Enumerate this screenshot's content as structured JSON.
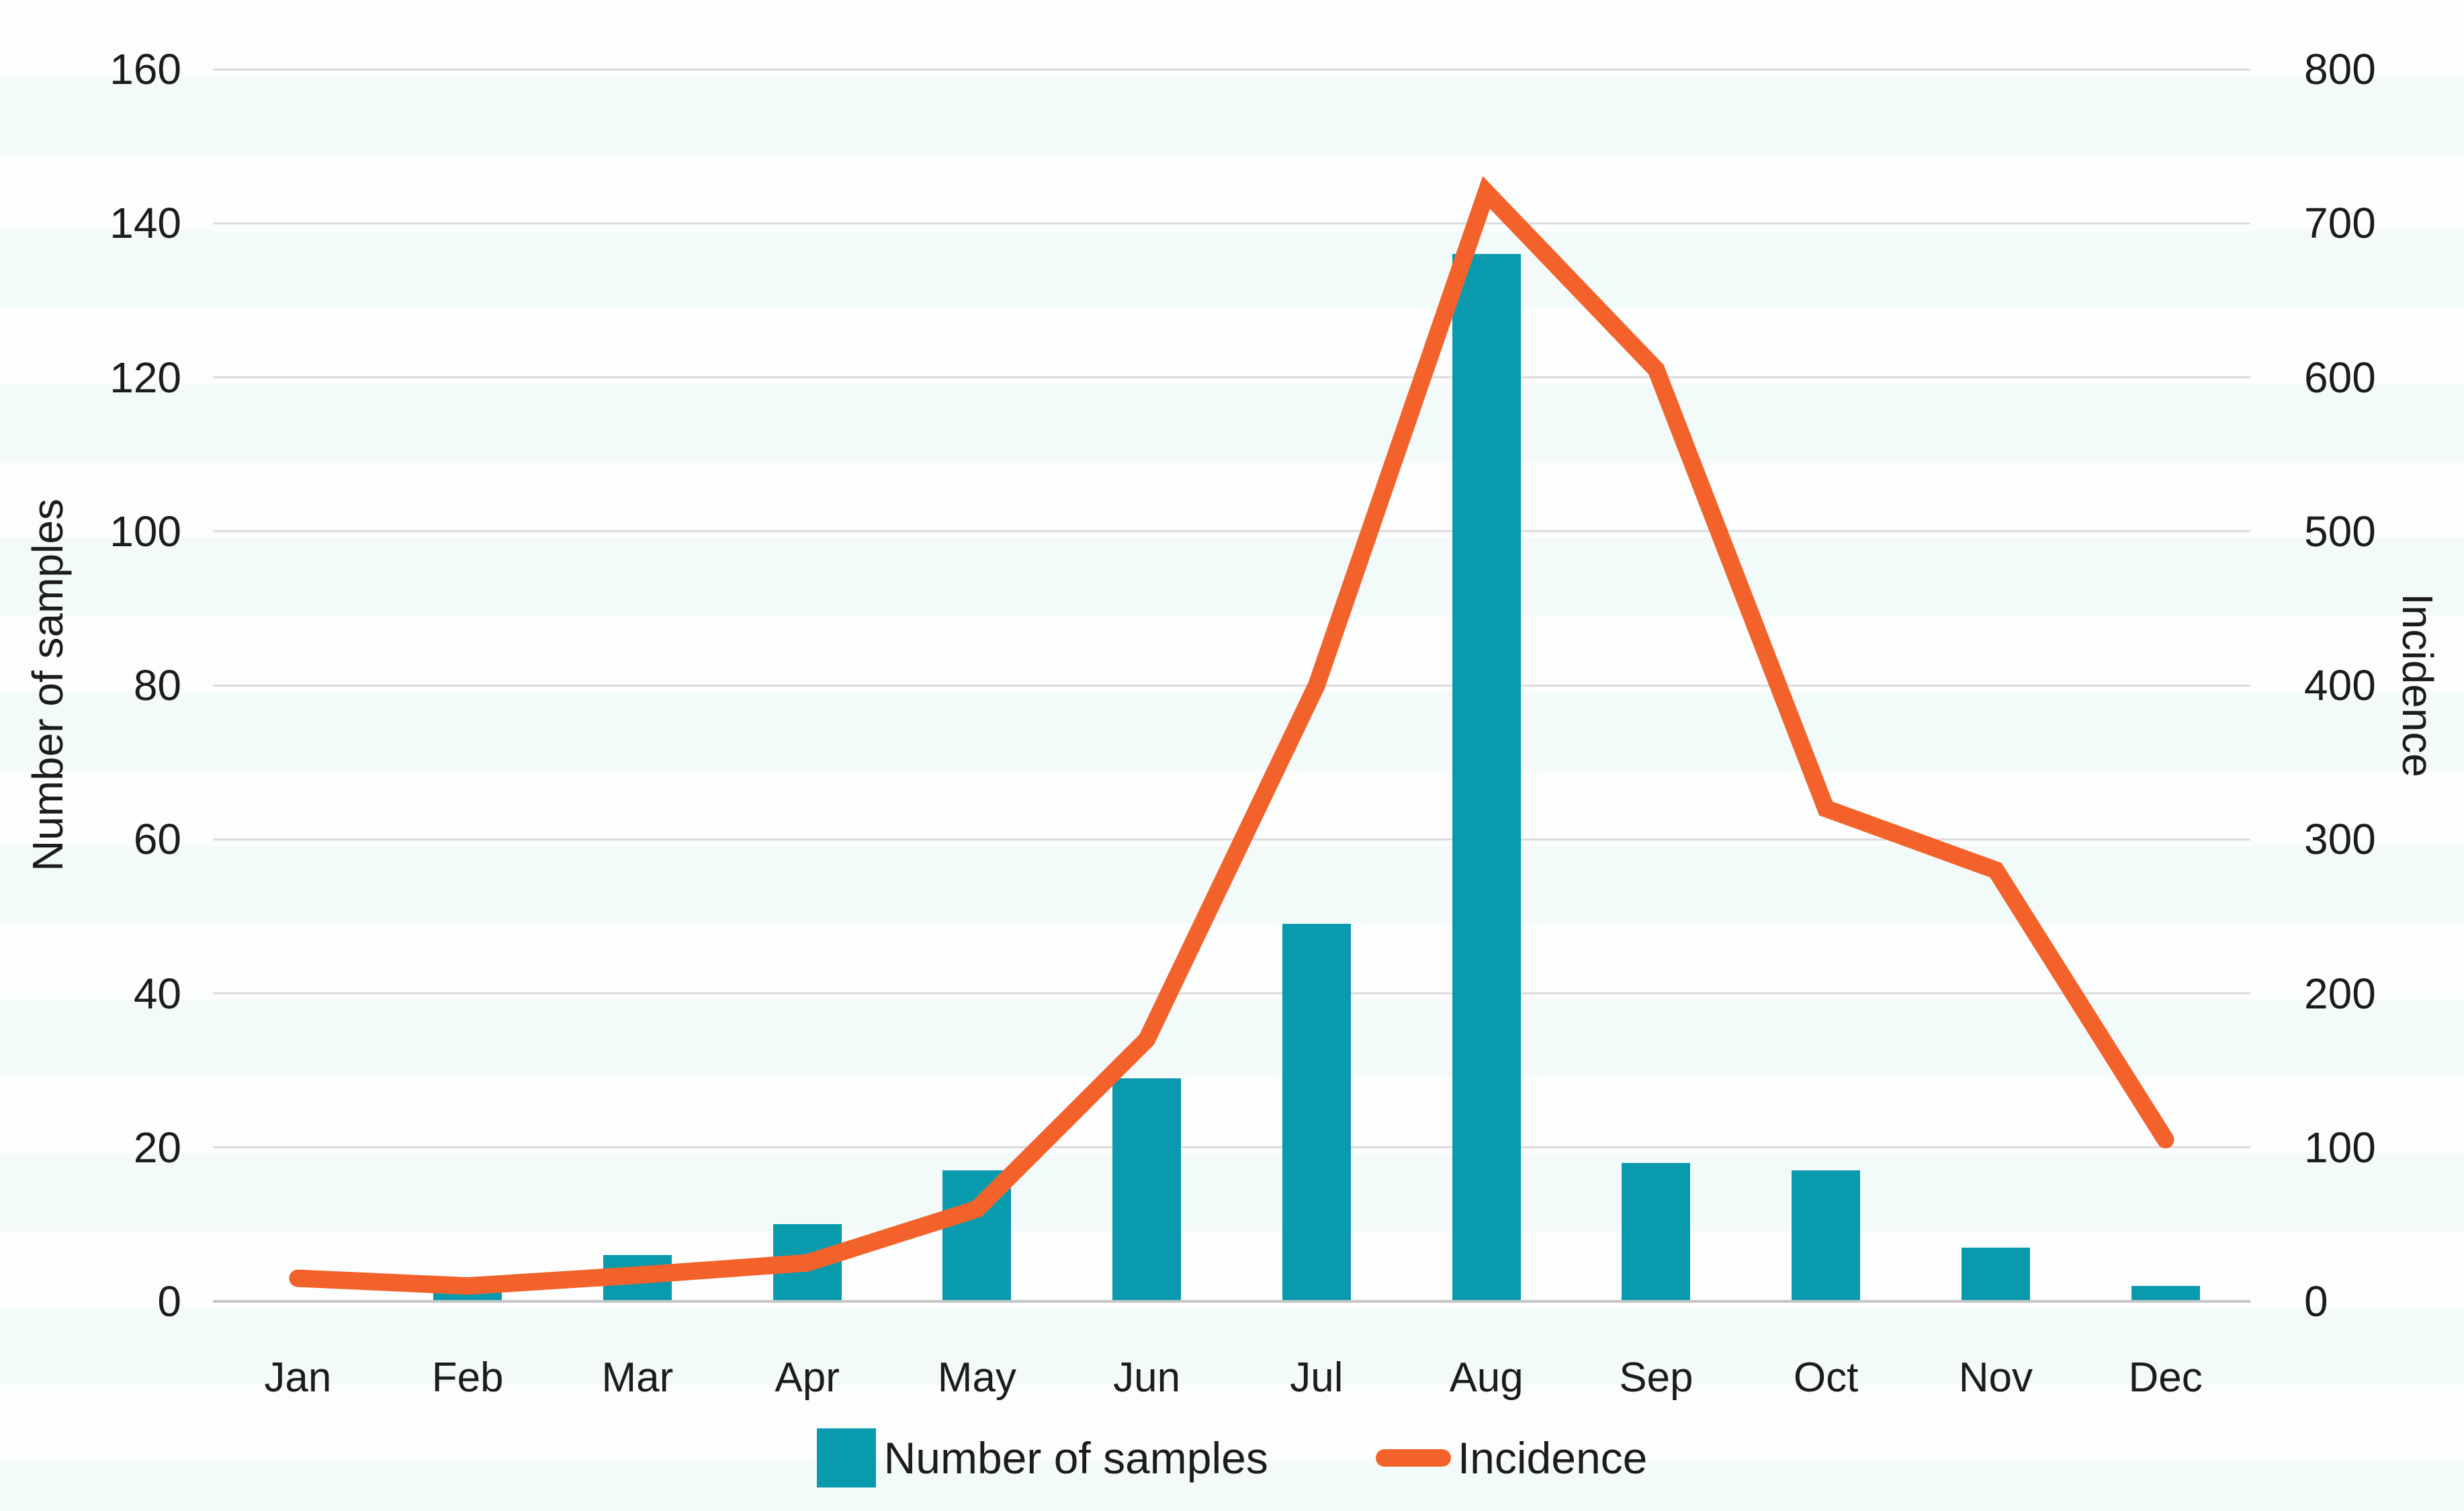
{
  "chart_data": {
    "type": "combo_bar_line",
    "categories": [
      "Jan",
      "Feb",
      "Mar",
      "Apr",
      "May",
      "Jun",
      "Jul",
      "Aug",
      "Sep",
      "Oct",
      "Nov",
      "Dec"
    ],
    "series": [
      {
        "name": "Number of samples",
        "type": "bar",
        "axis": "left",
        "color": "#0a9aad",
        "values": [
          0,
          2,
          6,
          10,
          17,
          29,
          49,
          136,
          18,
          17,
          7,
          2
        ]
      },
      {
        "name": "Incidence",
        "type": "line",
        "axis": "right",
        "color": "#f4622c",
        "values": [
          15,
          10,
          17,
          25,
          60,
          170,
          400,
          720,
          605,
          320,
          280,
          105
        ]
      }
    ],
    "left_axis": {
      "label": "Number of samples",
      "min": 0,
      "max": 160,
      "step": 20,
      "ticks": [
        "0",
        "20",
        "40",
        "60",
        "80",
        "100",
        "120",
        "140",
        "160"
      ]
    },
    "right_axis": {
      "label": "Incidence",
      "min": 0,
      "max": 800,
      "step": 100,
      "ticks": [
        "0",
        "100",
        "200",
        "300",
        "400",
        "500",
        "600",
        "700",
        "800"
      ]
    },
    "grid": true,
    "legend": {
      "position": "bottom",
      "items": [
        {
          "label": "Number of samples",
          "swatch": "square",
          "color": "#0a9aad"
        },
        {
          "label": "Incidence",
          "swatch": "line",
          "color": "#f4622c"
        }
      ]
    }
  },
  "colors": {
    "bar": "#0a9aad",
    "line": "#f4622c",
    "grid": "#dcdcdc",
    "axis_line": "#c6c6c6",
    "text": "#1c1c1c"
  }
}
